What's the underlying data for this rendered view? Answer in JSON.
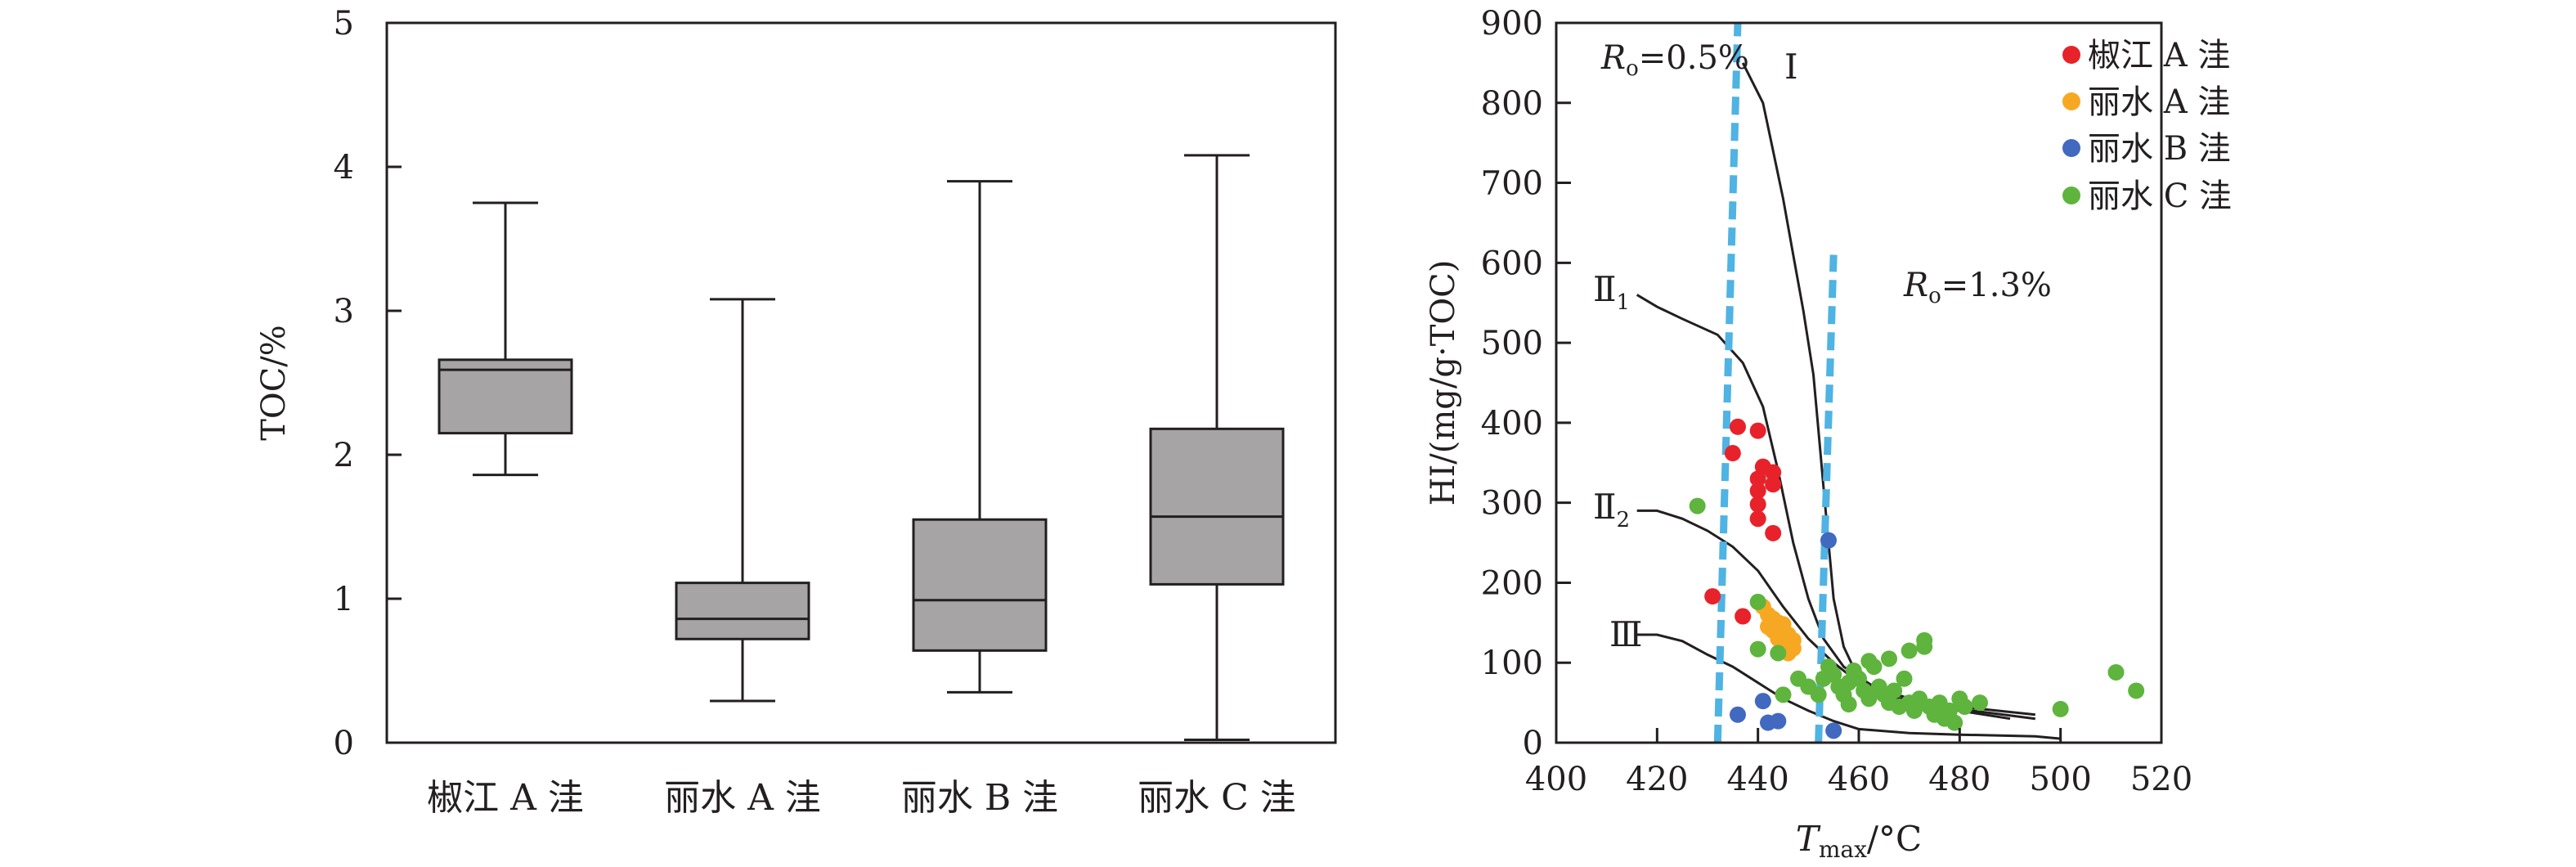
{
  "chart_data": [
    {
      "type": "boxplot",
      "ylabel": "TOC/%",
      "ylim": [
        0,
        5
      ],
      "yticks": [
        "0",
        "1",
        "2",
        "3",
        "4",
        "5"
      ],
      "categories": [
        "椒江 A 洼",
        "丽水 A 洼",
        "丽水 B 洼",
        "丽水 C 洼"
      ],
      "boxes": [
        {
          "min": 1.86,
          "q1": 2.15,
          "median": 2.59,
          "q3": 2.66,
          "max": 3.75
        },
        {
          "min": 0.29,
          "q1": 0.72,
          "median": 0.86,
          "q3": 1.11,
          "max": 3.08
        },
        {
          "min": 0.35,
          "q1": 0.64,
          "median": 0.99,
          "q3": 1.55,
          "max": 3.9
        },
        {
          "min": 0.02,
          "q1": 1.1,
          "median": 1.57,
          "q3": 2.18,
          "max": 4.08
        }
      ],
      "box_color": "#a6a4a5"
    },
    {
      "type": "scatter",
      "xlabel_main": "T",
      "xlabel_sub": "max",
      "xlabel_unit": "/°C",
      "ylabel": "HI/(mg/g·TOC)",
      "xlim": [
        400,
        520
      ],
      "ylim": [
        0,
        900
      ],
      "xticks": [
        "400",
        "420",
        "440",
        "460",
        "480",
        "500",
        "520"
      ],
      "yticks": [
        "0",
        "100",
        "200",
        "300",
        "400",
        "500",
        "600",
        "700",
        "800",
        "900"
      ],
      "legend_position": "top-right",
      "type_labels": [
        {
          "main": "Ⅰ",
          "sub": ""
        },
        {
          "main": "Ⅱ",
          "sub": "1"
        },
        {
          "main": "Ⅱ",
          "sub": "2"
        },
        {
          "main": "Ⅲ",
          "sub": ""
        }
      ],
      "ro_labels": [
        {
          "main": "R",
          "sub": "o",
          "value": "=0.5%"
        },
        {
          "main": "R",
          "sub": "o",
          "value": "=1.3%"
        }
      ],
      "ro_lines": [
        [
          [
            432,
            0
          ],
          [
            436,
            900
          ]
        ],
        [
          [
            452,
            0
          ],
          [
            455,
            610
          ]
        ]
      ],
      "type_curves": [
        [
          [
            437,
            850
          ],
          [
            441,
            800
          ],
          [
            443,
            740
          ],
          [
            445,
            680
          ],
          [
            447,
            610
          ],
          [
            449,
            540
          ],
          [
            451,
            460
          ],
          [
            452,
            390
          ],
          [
            453,
            320
          ],
          [
            454,
            250
          ],
          [
            455,
            180
          ],
          [
            457,
            120
          ],
          [
            460,
            80
          ],
          [
            465,
            60
          ],
          [
            475,
            45
          ],
          [
            490,
            30
          ]
        ],
        [
          [
            416,
            560
          ],
          [
            420,
            545
          ],
          [
            425,
            530
          ],
          [
            432,
            510
          ],
          [
            437,
            475
          ],
          [
            441,
            420
          ],
          [
            444,
            340
          ],
          [
            447,
            250
          ],
          [
            450,
            180
          ],
          [
            453,
            130
          ],
          [
            457,
            95
          ],
          [
            463,
            70
          ],
          [
            470,
            55
          ],
          [
            480,
            45
          ],
          [
            495,
            35
          ]
        ],
        [
          [
            416,
            290
          ],
          [
            420,
            290
          ],
          [
            425,
            280
          ],
          [
            430,
            265
          ],
          [
            435,
            245
          ],
          [
            440,
            215
          ],
          [
            445,
            170
          ],
          [
            450,
            130
          ],
          [
            455,
            100
          ],
          [
            460,
            75
          ],
          [
            470,
            55
          ],
          [
            480,
            42
          ],
          [
            495,
            30
          ]
        ],
        [
          [
            416,
            135
          ],
          [
            420,
            135
          ],
          [
            425,
            127
          ],
          [
            430,
            110
          ],
          [
            435,
            95
          ],
          [
            440,
            75
          ],
          [
            445,
            55
          ],
          [
            450,
            40
          ],
          [
            455,
            27
          ],
          [
            460,
            17
          ],
          [
            470,
            12
          ],
          [
            480,
            10
          ],
          [
            495,
            8
          ],
          [
            500,
            5
          ]
        ]
      ],
      "series": [
        {
          "name": "椒江 A 洼",
          "color": "#e8222a",
          "points": [
            [
              436,
              395
            ],
            [
              440,
              390
            ],
            [
              435,
              362
            ],
            [
              441,
              345
            ],
            [
              443,
              338
            ],
            [
              440,
              330
            ],
            [
              443,
              323
            ],
            [
              440,
              315
            ],
            [
              440,
              298
            ],
            [
              440,
              280
            ],
            [
              443,
              262
            ],
            [
              431,
              183
            ],
            [
              437,
              158
            ]
          ]
        },
        {
          "name": "丽水 A 洼",
          "color": "#f7a823",
          "points": [
            [
              441,
              170
            ],
            [
              442,
              160
            ],
            [
              443,
              155
            ],
            [
              444,
              150
            ],
            [
              445,
              148
            ],
            [
              442,
              145
            ],
            [
              443,
              140
            ],
            [
              445,
              138
            ],
            [
              446,
              135
            ],
            [
              444,
              130
            ],
            [
              447,
              128
            ],
            [
              445,
              122
            ],
            [
              447,
              118
            ],
            [
              446,
              112
            ]
          ]
        },
        {
          "name": "丽水 B 洼",
          "color": "#4169c0",
          "points": [
            [
              454,
              253
            ],
            [
              436,
              35
            ],
            [
              441,
              52
            ],
            [
              442,
              25
            ],
            [
              444,
              27
            ],
            [
              455,
              15
            ]
          ]
        },
        {
          "name": "丽水 C 洼",
          "color": "#5eb43d",
          "points": [
            [
              428,
              296
            ],
            [
              440,
              176
            ],
            [
              444,
              112
            ],
            [
              440,
              117
            ],
            [
              445,
              60
            ],
            [
              448,
              80
            ],
            [
              450,
              70
            ],
            [
              452,
              60
            ],
            [
              453,
              80
            ],
            [
              454,
              95
            ],
            [
              455,
              85
            ],
            [
              456,
              70
            ],
            [
              457,
              60
            ],
            [
              458,
              75
            ],
            [
              459,
              90
            ],
            [
              460,
              80
            ],
            [
              461,
              65
            ],
            [
              462,
              55
            ],
            [
              463,
              95
            ],
            [
              464,
              70
            ],
            [
              465,
              60
            ],
            [
              466,
              50
            ],
            [
              467,
              65
            ],
            [
              468,
              45
            ],
            [
              469,
              80
            ],
            [
              470,
              50
            ],
            [
              471,
              40
            ],
            [
              472,
              55
            ],
            [
              473,
              120
            ],
            [
              473,
              128
            ],
            [
              474,
              45
            ],
            [
              475,
              35
            ],
            [
              476,
              50
            ],
            [
              477,
              30
            ],
            [
              478,
              40
            ],
            [
              479,
              25
            ],
            [
              480,
              55
            ],
            [
              481,
              45
            ],
            [
              484,
              50
            ],
            [
              500,
              42
            ],
            [
              511,
              88
            ],
            [
              515,
              65
            ],
            [
              458,
              48
            ],
            [
              462,
              102
            ],
            [
              466,
              105
            ],
            [
              470,
              115
            ]
          ]
        }
      ]
    }
  ]
}
